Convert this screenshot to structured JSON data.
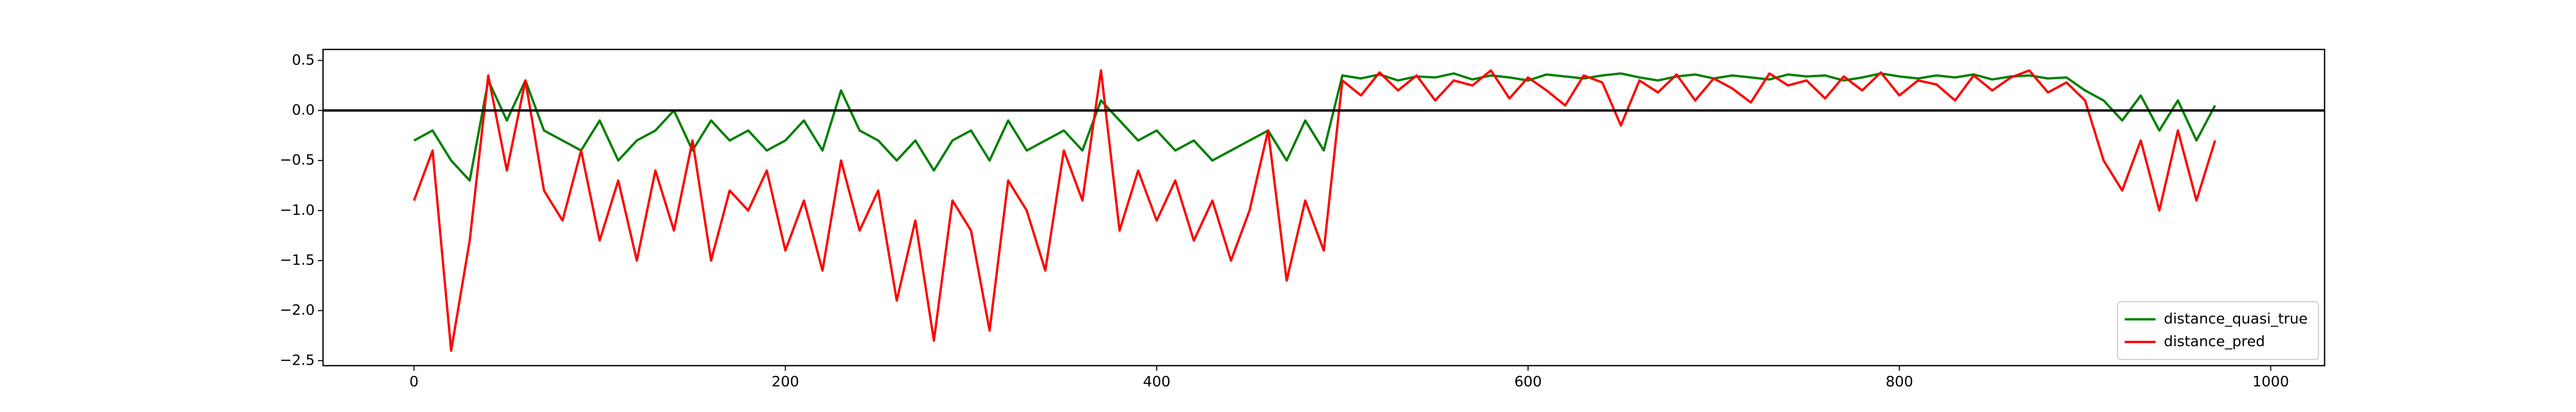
{
  "chart_data": {
    "type": "line",
    "x": [
      0,
      10,
      20,
      30,
      40,
      50,
      60,
      70,
      80,
      90,
      100,
      110,
      120,
      130,
      140,
      150,
      160,
      170,
      180,
      190,
      200,
      210,
      220,
      230,
      240,
      250,
      260,
      270,
      280,
      290,
      300,
      310,
      320,
      330,
      340,
      350,
      360,
      370,
      380,
      390,
      400,
      410,
      420,
      430,
      440,
      450,
      460,
      470,
      480,
      490,
      500,
      510,
      520,
      530,
      540,
      550,
      560,
      570,
      580,
      590,
      600,
      610,
      620,
      630,
      640,
      650,
      660,
      670,
      680,
      690,
      700,
      710,
      720,
      730,
      740,
      750,
      760,
      770,
      780,
      790,
      800,
      810,
      820,
      830,
      840,
      850,
      860,
      870,
      880,
      890,
      900,
      910,
      920,
      930,
      940,
      950,
      960,
      970
    ],
    "series": [
      {
        "name": "distance_quasi_true",
        "color": "#008000",
        "values": [
          -0.3,
          -0.2,
          -0.5,
          -0.7,
          0.3,
          -0.1,
          0.3,
          -0.2,
          -0.3,
          -0.4,
          -0.1,
          -0.5,
          -0.3,
          -0.2,
          0.0,
          -0.4,
          -0.1,
          -0.3,
          -0.2,
          -0.4,
          -0.3,
          -0.1,
          -0.4,
          0.2,
          -0.2,
          -0.3,
          -0.5,
          -0.3,
          -0.6,
          -0.3,
          -0.2,
          -0.5,
          -0.1,
          -0.4,
          -0.3,
          -0.2,
          -0.4,
          0.1,
          -0.1,
          -0.3,
          -0.2,
          -0.4,
          -0.3,
          -0.5,
          -0.4,
          -0.3,
          -0.2,
          -0.5,
          -0.1,
          -0.4,
          0.35,
          0.32,
          0.36,
          0.3,
          0.34,
          0.33,
          0.37,
          0.31,
          0.35,
          0.33,
          0.3,
          0.36,
          0.34,
          0.32,
          0.35,
          0.37,
          0.33,
          0.3,
          0.34,
          0.36,
          0.32,
          0.35,
          0.33,
          0.31,
          0.36,
          0.34,
          0.35,
          0.3,
          0.33,
          0.37,
          0.34,
          0.32,
          0.35,
          0.33,
          0.36,
          0.31,
          0.34,
          0.35,
          0.32,
          0.33,
          0.2,
          0.1,
          -0.1,
          0.15,
          -0.2,
          0.1,
          -0.3,
          0.05
        ]
      },
      {
        "name": "distance_pred",
        "color": "#ff0000",
        "values": [
          -0.9,
          -0.4,
          -2.4,
          -1.3,
          0.35,
          -0.6,
          0.3,
          -0.8,
          -1.1,
          -0.4,
          -1.3,
          -0.7,
          -1.5,
          -0.6,
          -1.2,
          -0.3,
          -1.5,
          -0.8,
          -1.0,
          -0.6,
          -1.4,
          -0.9,
          -1.6,
          -0.5,
          -1.2,
          -0.8,
          -1.9,
          -1.1,
          -2.3,
          -0.9,
          -1.2,
          -2.2,
          -0.7,
          -1.0,
          -1.6,
          -0.4,
          -0.9,
          0.4,
          -1.2,
          -0.6,
          -1.1,
          -0.7,
          -1.3,
          -0.9,
          -1.5,
          -1.0,
          -0.2,
          -1.7,
          -0.9,
          -1.4,
          0.3,
          0.15,
          0.38,
          0.2,
          0.35,
          0.1,
          0.3,
          0.25,
          0.4,
          0.12,
          0.33,
          0.2,
          0.05,
          0.35,
          0.28,
          -0.15,
          0.3,
          0.18,
          0.36,
          0.1,
          0.32,
          0.22,
          0.08,
          0.37,
          0.25,
          0.3,
          0.12,
          0.34,
          0.2,
          0.38,
          0.15,
          0.3,
          0.26,
          0.1,
          0.35,
          0.2,
          0.33,
          0.4,
          0.18,
          0.28,
          0.1,
          -0.5,
          -0.8,
          -0.3,
          -1.0,
          -0.2,
          -0.9,
          -0.3
        ]
      }
    ],
    "hline": 0,
    "xlim": [
      -49,
      1029
    ],
    "ylim": [
      -2.55,
      0.61
    ],
    "xticks": [
      0,
      200,
      400,
      600,
      800,
      1000
    ],
    "yticks": [
      {
        "value": -2.5,
        "label": "−2.5"
      },
      {
        "value": -2.0,
        "label": "−2.0"
      },
      {
        "value": -1.5,
        "label": "−1.5"
      },
      {
        "value": -1.0,
        "label": "−1.0"
      },
      {
        "value": -0.5,
        "label": "−0.5"
      },
      {
        "value": 0.0,
        "label": "0.0"
      },
      {
        "value": 0.5,
        "label": "0.5"
      }
    ],
    "legend": "lower right"
  }
}
